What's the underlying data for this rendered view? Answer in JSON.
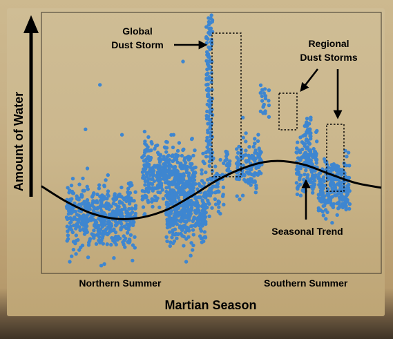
{
  "chart_data": {
    "type": "scatter",
    "title": "",
    "xlabel": "Martian Season",
    "ylabel": "Amount of Water",
    "x_tick_labels": [
      {
        "label": "Northern Summer",
        "x": 125
      },
      {
        "label": "Southern Summer",
        "x": 420
      }
    ],
    "xlim": [
      0,
      540
    ],
    "ylim": [
      0,
      335
    ],
    "grid": false,
    "point_color": "#3e86d0",
    "trend_color": "#000000",
    "trend": {
      "name": "Seasonal Trend",
      "points": [
        [
          0,
          112
        ],
        [
          40,
          92
        ],
        [
          80,
          77
        ],
        [
          120,
          70
        ],
        [
          160,
          72
        ],
        [
          200,
          82
        ],
        [
          240,
          100
        ],
        [
          280,
          120
        ],
        [
          320,
          135
        ],
        [
          355,
          143
        ],
        [
          385,
          144
        ],
        [
          420,
          139
        ],
        [
          460,
          127
        ],
        [
          500,
          116
        ],
        [
          540,
          110
        ]
      ]
    },
    "clusters": [
      {
        "x": [
          40,
          150
        ],
        "y_center": 75,
        "y_spread": 26,
        "count": 480,
        "outliers": [
          [
            48,
            22
          ],
          [
            60,
            30
          ],
          [
            95,
            10
          ],
          [
            100,
            12
          ],
          [
            45,
            15
          ],
          [
            105,
            50
          ],
          [
            93,
            242
          ],
          [
            55,
            25
          ],
          [
            70,
            185
          ],
          [
            128,
            178
          ]
        ]
      },
      {
        "x": [
          160,
          245
        ],
        "y_center": 125,
        "y_spread": 26,
        "count": 420,
        "outliers": [
          [
            170,
            175
          ],
          [
            180,
            160
          ],
          [
            185,
            155
          ],
          [
            225,
            272
          ],
          [
            230,
            15
          ],
          [
            240,
            30
          ],
          [
            210,
            178
          ]
        ]
      },
      {
        "x": [
          198,
          262
        ],
        "y_center": 80,
        "y_spread": 25,
        "count": 330,
        "outliers": [
          [
            215,
            45
          ],
          [
            205,
            40
          ],
          [
            255,
            40
          ]
        ]
      },
      {
        "x": [
          250,
          290
        ],
        "y_center": 110,
        "y_spread": 30,
        "count": 80,
        "outliers": []
      },
      {
        "x": [
          292,
          300
        ],
        "y_center": 138,
        "y_spread": 12,
        "count": 20,
        "outliers": []
      },
      {
        "x": [
          310,
          350
        ],
        "y_center": 140,
        "y_spread": 20,
        "count": 130,
        "outliers": [
          [
            315,
            95
          ],
          [
            320,
            100
          ],
          [
            320,
            200
          ],
          [
            325,
            180
          ]
        ]
      },
      {
        "x": [
          405,
          438
        ],
        "y_center": 140,
        "y_spread": 25,
        "count": 120,
        "outliers": [
          [
            412,
            100
          ],
          [
            418,
            105
          ],
          [
            420,
            190
          ],
          [
            425,
            185
          ]
        ]
      },
      {
        "x": [
          440,
          490
        ],
        "y_center": 112,
        "y_spread": 22,
        "count": 220,
        "outliers": [
          [
            452,
            70
          ],
          [
            462,
            65
          ],
          [
            470,
            75
          ],
          [
            485,
            150
          ],
          [
            488,
            155
          ]
        ]
      }
    ],
    "global_storm": {
      "x": [
        262,
        272
      ],
      "y_range": [
        145,
        330
      ],
      "count": 115
    },
    "regional_storms": [
      {
        "x": [
          348,
          362
        ],
        "y_range": [
          202,
          240
        ],
        "count": 20
      },
      {
        "x": [
          418,
          428
        ],
        "y_range": [
          135,
          200
        ],
        "count": 45
      }
    ]
  },
  "annotations": {
    "global_storm_line1": "Global",
    "global_storm_line2": "Dust Storm",
    "regional_storms_line1": "Regional",
    "regional_storms_line2": "Dust Storms",
    "seasonal_trend": "Seasonal Trend"
  }
}
